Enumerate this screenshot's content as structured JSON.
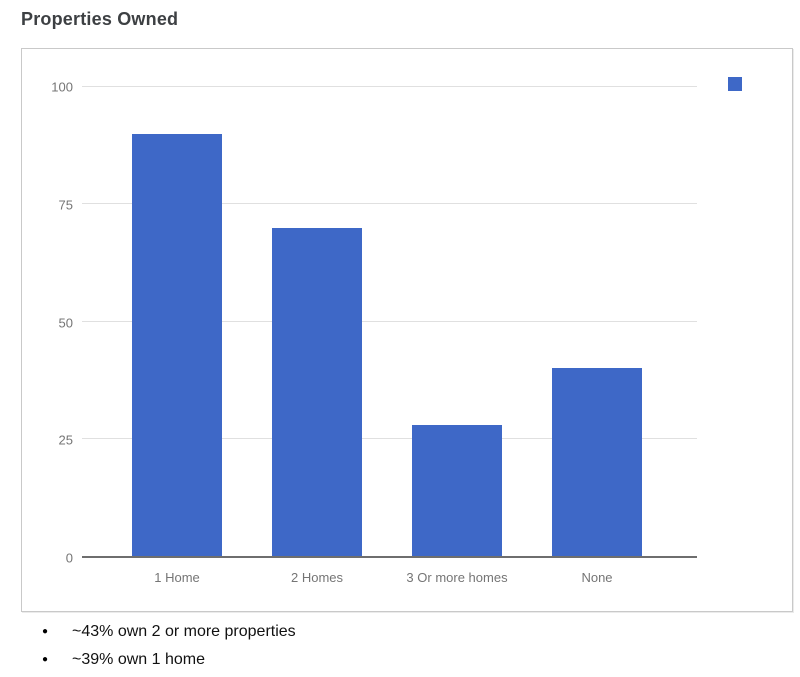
{
  "title": "Properties Owned",
  "chart_data": {
    "type": "bar",
    "title": "Properties Owned",
    "categories": [
      "1 Home",
      "2 Homes",
      "3 Or more homes",
      "None"
    ],
    "values": [
      90,
      70,
      28,
      40
    ],
    "xlabel": "",
    "ylabel": "",
    "ylim": [
      0,
      100
    ],
    "yticks": [
      0,
      25,
      50,
      75,
      100
    ],
    "grid": true,
    "legend_position": "top-right",
    "legend_labels": [
      ""
    ],
    "series_color": "#3E68C7"
  },
  "colors": {
    "bar": "#3E68C7",
    "grid_line": "#e0e0e0",
    "axis_line": "#6e6e6e",
    "tick_label": "#757575",
    "title_text": "#3d4043",
    "panel_border": "#c9c9c9",
    "note_text": "#111111"
  },
  "notes": [
    "~43% own 2 or more properties",
    "~39% own 1 home"
  ]
}
